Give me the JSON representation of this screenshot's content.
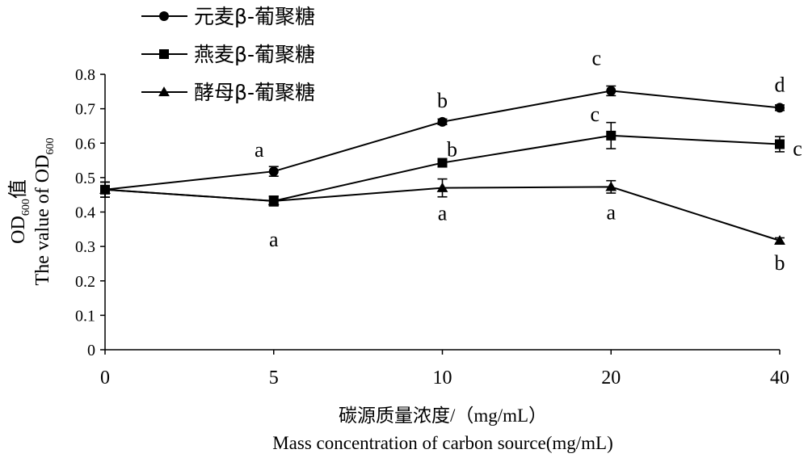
{
  "chart_data": {
    "type": "line",
    "categories": [
      "0",
      "5",
      "10",
      "20",
      "40"
    ],
    "ylim": [
      0,
      0.8
    ],
    "yticks": [
      "0",
      "0.1",
      "0.2",
      "0.3",
      "0.4",
      "0.5",
      "0.6",
      "0.7",
      "0.8"
    ],
    "grid": false,
    "legend_position": "top-left",
    "ylabel_cn_main": "OD",
    "ylabel_cn_sub": "600",
    "ylabel_cn_suffix": "值",
    "ylabel_en_main": "The value of OD",
    "ylabel_en_sub": "600",
    "xlabel_cn": "碳源质量浓度/（mg/mL）",
    "xlabel_en": "Mass concentration of carbon source(mg/mL)",
    "series": [
      {
        "name": "元麦β-葡聚糖",
        "marker": "circle",
        "values": [
          0.465,
          0.518,
          0.662,
          0.752,
          0.703
        ],
        "errors": [
          0.022,
          0.014,
          0.008,
          0.014,
          0.008
        ],
        "labels": [
          "",
          "a",
          "b",
          "c",
          "d"
        ]
      },
      {
        "name": "燕麦β-葡聚糖",
        "marker": "square",
        "values": [
          0.465,
          0.432,
          0.543,
          0.622,
          0.597
        ],
        "errors": [
          0.022,
          0.014,
          0.008,
          0.038,
          0.022
        ],
        "labels": [
          "",
          "a",
          "b",
          "c",
          "c"
        ]
      },
      {
        "name": "酵母β-葡聚糖",
        "marker": "triangle",
        "values": [
          0.465,
          0.432,
          0.47,
          0.473,
          0.317
        ],
        "errors": [
          0.022,
          0.014,
          0.026,
          0.018,
          0.008
        ],
        "labels": [
          "",
          "",
          "a",
          "a",
          "b"
        ]
      }
    ]
  }
}
